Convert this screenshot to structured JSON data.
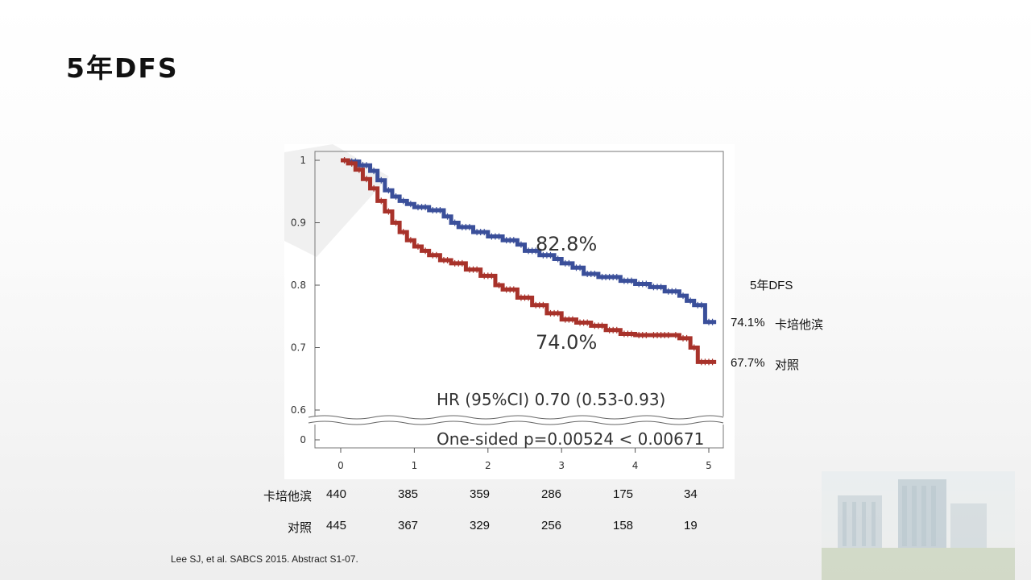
{
  "slide": {
    "title": "5年DFS"
  },
  "chart_data": {
    "type": "line",
    "subtype": "kaplan-meier",
    "x_ticks": [
      "0",
      "1",
      "2",
      "3",
      "4",
      "5"
    ],
    "y_ticks": [
      "1",
      "0.9",
      "0.8",
      "0.7",
      "0.6",
      "0"
    ],
    "xlim": [
      0,
      5.1
    ],
    "ylim": [
      0.6,
      1.0
    ],
    "axis_break": true,
    "grid": false,
    "series": [
      {
        "name": "卡培他滨",
        "color": "#3a4f9a",
        "x": [
          0,
          0.1,
          0.25,
          0.4,
          0.5,
          0.6,
          0.7,
          0.8,
          0.9,
          1.0,
          1.2,
          1.4,
          1.5,
          1.6,
          1.8,
          2.0,
          2.2,
          2.4,
          2.5,
          2.7,
          2.9,
          3.0,
          3.15,
          3.3,
          3.5,
          3.8,
          4.0,
          4.2,
          4.4,
          4.6,
          4.7,
          4.8,
          4.95,
          5.1
        ],
        "y": [
          1.0,
          0.998,
          0.992,
          0.983,
          0.968,
          0.952,
          0.942,
          0.935,
          0.93,
          0.925,
          0.92,
          0.91,
          0.9,
          0.893,
          0.885,
          0.878,
          0.872,
          0.865,
          0.855,
          0.848,
          0.842,
          0.835,
          0.828,
          0.818,
          0.813,
          0.807,
          0.802,
          0.797,
          0.79,
          0.783,
          0.775,
          0.768,
          0.741,
          0.741
        ]
      },
      {
        "name": "对照",
        "color": "#a8322a",
        "x": [
          0,
          0.1,
          0.2,
          0.3,
          0.4,
          0.5,
          0.6,
          0.7,
          0.8,
          0.9,
          1.0,
          1.1,
          1.2,
          1.35,
          1.5,
          1.7,
          1.9,
          2.1,
          2.2,
          2.4,
          2.6,
          2.8,
          3.0,
          3.2,
          3.4,
          3.6,
          3.8,
          4.0,
          4.2,
          4.5,
          4.6,
          4.75,
          4.85,
          5.1
        ],
        "y": [
          1.0,
          0.995,
          0.985,
          0.97,
          0.955,
          0.935,
          0.918,
          0.9,
          0.885,
          0.872,
          0.862,
          0.855,
          0.848,
          0.84,
          0.835,
          0.825,
          0.815,
          0.8,
          0.793,
          0.78,
          0.768,
          0.755,
          0.745,
          0.74,
          0.735,
          0.728,
          0.722,
          0.72,
          0.72,
          0.72,
          0.715,
          0.7,
          0.677,
          0.677
        ]
      }
    ],
    "annotations": {
      "upper_value": "82.8%",
      "lower_value": "74.0%",
      "hr": "HR (95%CI) 0.70 (0.53-0.93)",
      "p_value": "One-sided p=0.00524 < 0.00671"
    }
  },
  "side_legend": {
    "heading": "5年DFS",
    "series1_value": "74.1%",
    "series1_name": "卡培他滨",
    "series2_value": "67.7%",
    "series2_name": "对照"
  },
  "risk_table": {
    "rows": [
      {
        "label": "卡培他滨",
        "values": [
          "440",
          "385",
          "359",
          "286",
          "175",
          "34"
        ]
      },
      {
        "label": "对照",
        "values": [
          "445",
          "367",
          "329",
          "256",
          "158",
          "19"
        ]
      }
    ]
  },
  "citation": "Lee SJ, et al. SABCS 2015. Abstract S1-07."
}
